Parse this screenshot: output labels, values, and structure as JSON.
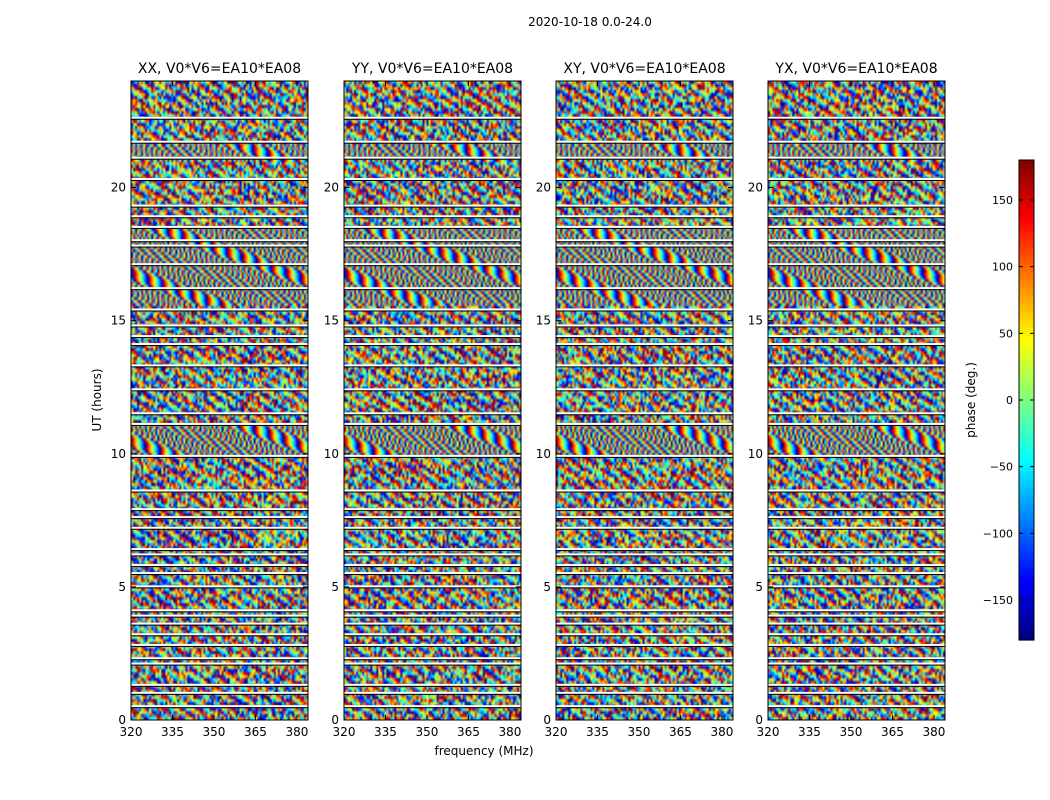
{
  "chart_data": {
    "type": "heatmap",
    "suptitle": "2020-10-18 0.0-24.0",
    "xlabel": "frequency (MHz)",
    "ylabel": "UT (hours)",
    "xlim": [
      320,
      384
    ],
    "ylim": [
      0,
      24
    ],
    "xticks": [
      320,
      335,
      350,
      365,
      380
    ],
    "yticks": [
      0,
      5,
      10,
      15,
      20
    ],
    "panels": [
      {
        "title": "XX, V0*V6=EA10*EA08",
        "product": "XX"
      },
      {
        "title": "YY, V0*V6=EA10*EA08",
        "product": "YY"
      },
      {
        "title": "XY, V0*V6=EA10*EA08",
        "product": "XY"
      },
      {
        "title": "YX, V0*V6=EA10*EA08",
        "product": "YX"
      }
    ],
    "colorbar": {
      "label": "phase (deg.)",
      "range": [
        -180,
        180
      ],
      "ticks": [
        150,
        100,
        50,
        0,
        -50,
        -100,
        -150
      ],
      "tick_labels": [
        "150",
        "100",
        "50",
        "0",
        "−50",
        "−100",
        "−150"
      ],
      "colormap": "jet"
    },
    "flagged_ut_hours": [
      0.5,
      1.0,
      1.3,
      2.1,
      2.3,
      2.8,
      3.2,
      3.6,
      3.9,
      4.1,
      5.0,
      5.5,
      5.8,
      6.2,
      6.4,
      7.2,
      7.6,
      7.9,
      8.6,
      9.9,
      11.1,
      11.5,
      12.4,
      13.3,
      14.1,
      14.4,
      14.8,
      15.4,
      16.2,
      17.1,
      17.8,
      18.0,
      18.5,
      18.9,
      19.3,
      20.3,
      21.1,
      21.7,
      22.6
    ],
    "smooth_fringe_ut_ranges": [
      [
        9.9,
        11.1
      ],
      [
        15.5,
        18.5
      ],
      [
        21.0,
        21.6
      ]
    ]
  }
}
